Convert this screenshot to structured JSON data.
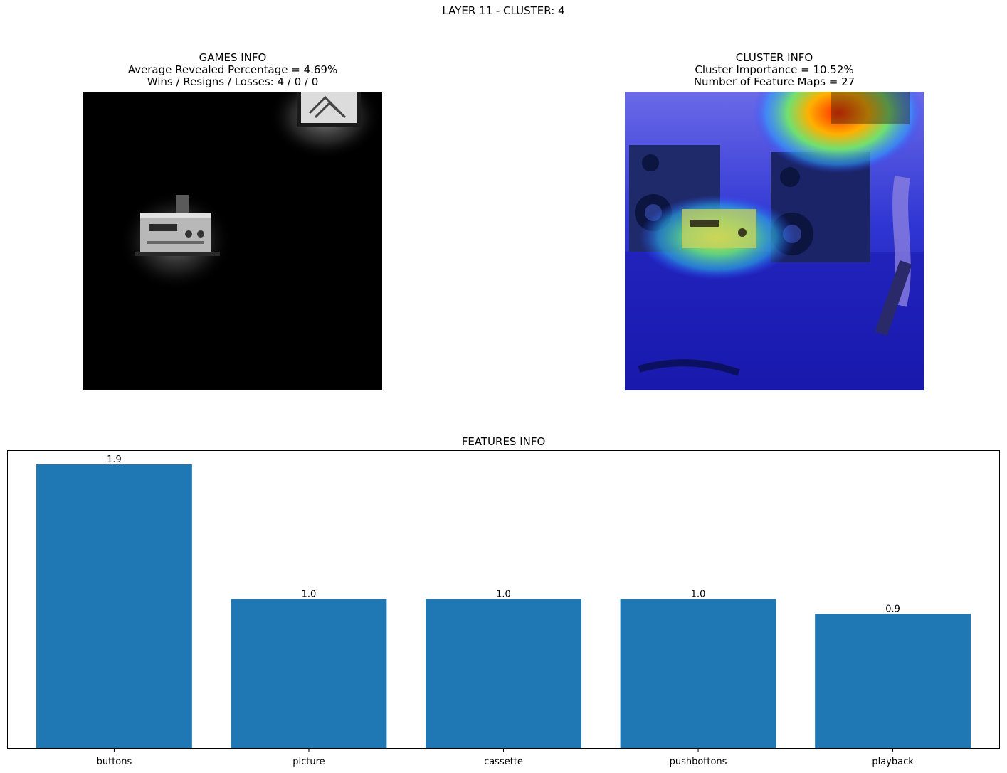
{
  "figure": {
    "suptitle": "LAYER 11 - CLUSTER: 4"
  },
  "games_info": {
    "title": "GAMES INFO",
    "line1": "Average Revealed Percentage = 4.69%",
    "line2": "Wins / Resigns / Losses: 4 / 0 / 0"
  },
  "cluster_info": {
    "title": "CLUSTER INFO",
    "line1": "Cluster Importance = 10.52%",
    "line2": "Number of Feature Maps = 27"
  },
  "chart_data": {
    "type": "bar",
    "title": "FEATURES INFO",
    "categories": [
      "buttons",
      "picture",
      "cassette",
      "pushbottons",
      "playback"
    ],
    "values": [
      1.9,
      1.0,
      1.0,
      1.0,
      0.9
    ],
    "value_labels": [
      "1.9",
      "1.0",
      "1.0",
      "1.0",
      "0.9"
    ],
    "bar_color": "#1f77b4",
    "xlabel": "",
    "ylabel": "",
    "y_ticks_visible": false,
    "grid": false
  }
}
